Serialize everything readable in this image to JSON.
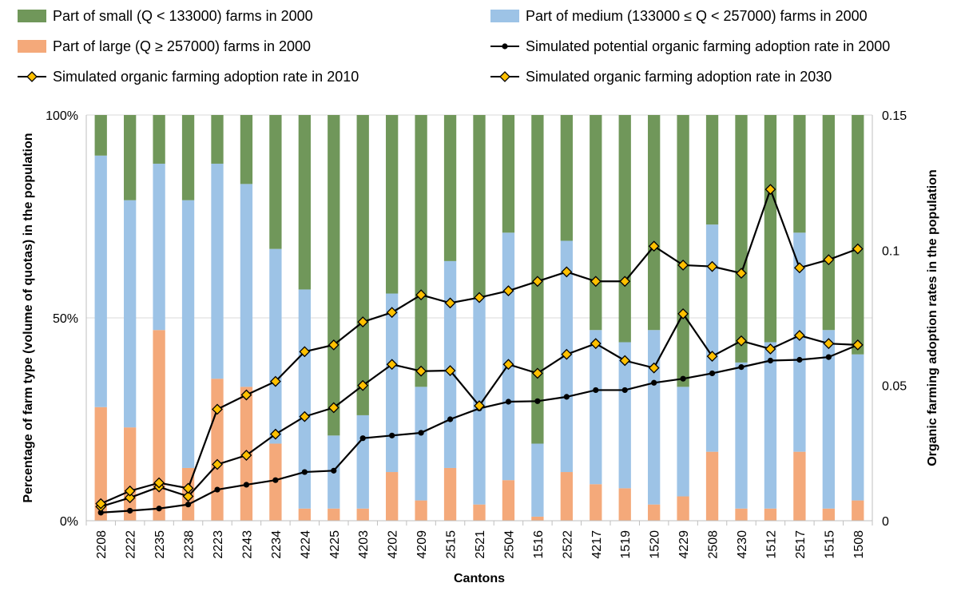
{
  "chart_data": {
    "type": "bar",
    "stacked": true,
    "xlabel": "Cantons",
    "ylabel": "Percentage of farm type (volume of quotas) in the population",
    "y2label": "Organic farming adoption rates in the population",
    "ylim": [
      0,
      100
    ],
    "y2lim": [
      0,
      0.15
    ],
    "yticks": [
      "0%",
      "50%",
      "100%"
    ],
    "y2ticks": [
      "0",
      "0.05",
      "0.1",
      "0.15"
    ],
    "grid": true,
    "legend_position": "top",
    "categories": [
      "2208",
      "2222",
      "2235",
      "2238",
      "2223",
      "2243",
      "2234",
      "4224",
      "4225",
      "4203",
      "4202",
      "4209",
      "2515",
      "2521",
      "2504",
      "1516",
      "2522",
      "4217",
      "1519",
      "1520",
      "4229",
      "2508",
      "4230",
      "1512",
      "2517",
      "1515",
      "1508"
    ],
    "series": [
      {
        "name": "Part of large (Q ≥ 257000) farms in 2000",
        "kind": "bar",
        "color": "#F4A97A",
        "values": [
          28,
          23,
          47,
          13,
          35,
          33,
          19,
          3,
          3,
          3,
          12,
          5,
          13,
          4,
          10,
          1,
          12,
          9,
          8,
          4,
          6,
          17,
          3,
          3,
          17,
          3,
          5
        ]
      },
      {
        "name": "Part of medium (133000 ≤ Q < 257000) farms in 2000",
        "kind": "bar",
        "color": "#9DC3E6",
        "values": [
          62,
          56,
          41,
          66,
          53,
          50,
          48,
          54,
          18,
          23,
          44,
          28,
          51,
          51,
          61,
          18,
          57,
          38,
          36,
          43,
          27,
          56,
          36,
          41,
          54,
          44,
          36
        ]
      },
      {
        "name": "Part of small (Q < 133000) farms in 2000",
        "kind": "bar",
        "color": "#70975A",
        "values": [
          10,
          21,
          12,
          21,
          12,
          17,
          33,
          43,
          79,
          74,
          44,
          67,
          36,
          45,
          29,
          81,
          31,
          53,
          56,
          53,
          67,
          27,
          61,
          56,
          29,
          53,
          59
        ]
      },
      {
        "name": "Simulated potential organic farming adoption rate in 2000",
        "kind": "line",
        "axis": "right",
        "color": "#000000",
        "marker": "circle",
        "values": [
          0.003,
          0.0037,
          0.0045,
          0.006,
          0.0115,
          0.0133,
          0.015,
          0.018,
          0.0185,
          0.0305,
          0.0315,
          0.0325,
          0.0375,
          0.0415,
          0.044,
          0.0442,
          0.0458,
          0.0483,
          0.0483,
          0.051,
          0.0525,
          0.0545,
          0.0568,
          0.0592,
          0.0595,
          0.0605,
          0.065
        ]
      },
      {
        "name": "Simulated organic farming adoption rate in 2010",
        "kind": "line",
        "axis": "right",
        "color": "#000000",
        "marker": "diamond",
        "marker_fill": "#FFC000",
        "values": [
          0.0052,
          0.0085,
          0.0125,
          0.009,
          0.0208,
          0.0242,
          0.032,
          0.0385,
          0.0418,
          0.05,
          0.0578,
          0.0553,
          0.0555,
          0.0425,
          0.0578,
          0.0545,
          0.0615,
          0.0655,
          0.0592,
          0.0565,
          0.0765,
          0.0608,
          0.0665,
          0.0635,
          0.0685,
          0.0655,
          0.065
        ]
      },
      {
        "name": "Simulated organic farming adoption rate in 2030",
        "kind": "line",
        "axis": "right",
        "color": "#000000",
        "marker": "diamond",
        "marker_fill": "#FFC000",
        "values": [
          0.0063,
          0.011,
          0.014,
          0.012,
          0.0412,
          0.0465,
          0.0515,
          0.0625,
          0.065,
          0.0735,
          0.077,
          0.0835,
          0.0805,
          0.0825,
          0.085,
          0.0885,
          0.092,
          0.0885,
          0.0885,
          0.1015,
          0.0945,
          0.094,
          0.0915,
          0.1225,
          0.0935,
          0.0965,
          0.1005
        ]
      }
    ],
    "legend_order": [
      2,
      1,
      0,
      3,
      4,
      5
    ]
  }
}
